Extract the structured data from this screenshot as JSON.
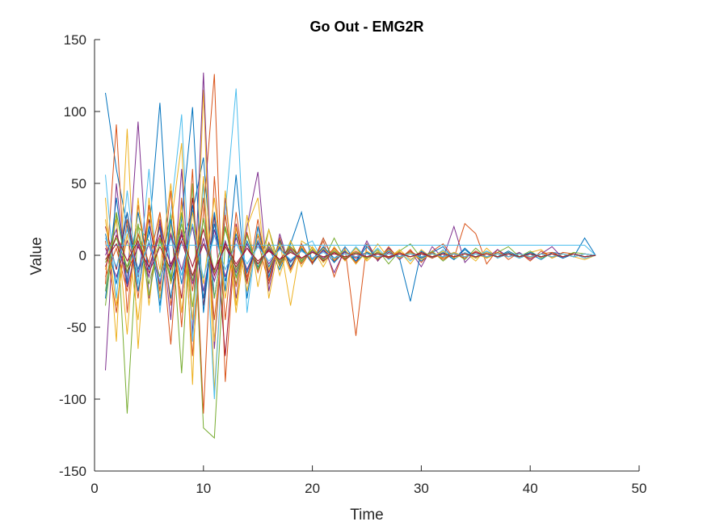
{
  "chart_data": {
    "type": "line",
    "title": "Go Out - EMG2R",
    "xlabel": "Time",
    "ylabel": "Value",
    "xlim": [
      0,
      50
    ],
    "ylim": [
      -150,
      150
    ],
    "xticks": [
      "0",
      "10",
      "20",
      "30",
      "40",
      "50"
    ],
    "yticks": [
      "150",
      "100",
      "50",
      "0",
      "-50",
      "-100",
      "-150"
    ],
    "grid": false,
    "legend": "none",
    "x": [
      1,
      2,
      3,
      4,
      5,
      6,
      7,
      8,
      9,
      10,
      11,
      12,
      13,
      14,
      15,
      16,
      17,
      18,
      19,
      20,
      21,
      22,
      23,
      24,
      25,
      26,
      27,
      28,
      29,
      30,
      31,
      32,
      33,
      34,
      35,
      36,
      37,
      38,
      39,
      40,
      41,
      42,
      43,
      44,
      45,
      46
    ],
    "colors": [
      "#0072BD",
      "#D95319",
      "#EDB120",
      "#7E2F8E",
      "#77AC30",
      "#4DBEEE",
      "#A2142F"
    ],
    "series": [
      {
        "values": [
          113,
          60,
          20,
          -10,
          15,
          106,
          -20,
          10,
          30,
          68,
          -30,
          20,
          -15,
          10,
          -8,
          5,
          -10,
          8,
          30,
          -6,
          12,
          -5,
          6,
          -4,
          8,
          -3,
          5,
          -2,
          3,
          -4,
          2,
          6,
          -3,
          4,
          -2,
          3,
          -1,
          2,
          -2,
          1,
          -3,
          2,
          1,
          -1,
          12,
          0
        ]
      },
      {
        "values": [
          -20,
          91,
          -40,
          35,
          -10,
          20,
          -62,
          40,
          -70,
          30,
          126,
          -88,
          20,
          -15,
          10,
          -20,
          12,
          -10,
          8,
          -6,
          10,
          -15,
          5,
          -56,
          8,
          -4,
          6,
          -3,
          4,
          -5,
          3,
          8,
          -2,
          22,
          15,
          -6,
          4,
          -3,
          2,
          -4,
          3,
          -2,
          2,
          1,
          -2,
          0
        ]
      },
      {
        "values": [
          40,
          -60,
          88,
          -65,
          40,
          -30,
          20,
          78,
          -90,
          115,
          -95,
          30,
          -40,
          20,
          40,
          -30,
          10,
          -35,
          10,
          5,
          -8,
          6,
          -4,
          5,
          -3,
          8,
          -2,
          3,
          -6,
          4,
          -2,
          3,
          -3,
          2,
          -4,
          5,
          -2,
          3,
          -2,
          2,
          4,
          -2,
          1,
          -1,
          -3,
          0
        ]
      },
      {
        "values": [
          -80,
          50,
          -20,
          93,
          -30,
          25,
          -45,
          60,
          -55,
          127,
          -65,
          40,
          -30,
          20,
          58,
          -25,
          15,
          -10,
          8,
          -5,
          6,
          -12,
          4,
          -6,
          10,
          -4,
          5,
          -3,
          3,
          -8,
          6,
          -2,
          20,
          -5,
          3,
          -2,
          4,
          -1,
          2,
          -3,
          1,
          6,
          -2,
          1,
          -1,
          0
        ]
      },
      {
        "values": [
          -35,
          30,
          -110,
          20,
          10,
          -15,
          30,
          -82,
          50,
          -120,
          -127,
          10,
          -20,
          15,
          -10,
          18,
          -8,
          10,
          -5,
          6,
          -4,
          12,
          -3,
          5,
          -2,
          4,
          -6,
          3,
          8,
          -2,
          3,
          -4,
          2,
          -3,
          5,
          -2,
          2,
          6,
          -1,
          3,
          -2,
          1,
          -1,
          2,
          1,
          0
        ]
      },
      {
        "values": [
          56,
          -30,
          45,
          -20,
          60,
          -40,
          30,
          98,
          -60,
          50,
          -100,
          30,
          116,
          -40,
          20,
          -15,
          12,
          -8,
          6,
          10,
          -5,
          4,
          -3,
          6,
          -2,
          5,
          -3,
          2,
          -4,
          3,
          -2,
          4,
          -3,
          2,
          -1,
          3,
          -2,
          1,
          -2,
          2,
          -1,
          1,
          -1,
          1,
          -2,
          0
        ]
      },
      {
        "values": [
          20,
          -10,
          30,
          -15,
          25,
          -20,
          15,
          -30,
          40,
          -35,
          28,
          -70,
          22,
          -18,
          14,
          -12,
          10,
          -8,
          6,
          -5,
          4,
          -3,
          3,
          -2,
          2,
          -3,
          2,
          -1,
          2,
          -1,
          1,
          -2,
          1,
          -1,
          2,
          -1,
          1,
          -1,
          1,
          -1,
          1,
          -1,
          1,
          -1,
          1,
          0
        ]
      },
      {
        "values": [
          -30,
          40,
          -20,
          30,
          -10,
          20,
          -30,
          25,
          103,
          -40,
          30,
          -25,
          56,
          -30,
          20,
          -15,
          10,
          -8,
          5,
          -6,
          4,
          -5,
          3,
          -4,
          6,
          -3,
          4,
          -2,
          -32,
          3,
          -2,
          2,
          -3,
          5,
          -2,
          2,
          -1,
          3,
          -1,
          2,
          -1,
          1,
          -2,
          1,
          -1,
          0
        ]
      },
      {
        "values": [
          10,
          -40,
          25,
          -30,
          35,
          -25,
          45,
          -50,
          60,
          -110,
          55,
          -45,
          30,
          -20,
          25,
          -18,
          12,
          -10,
          8,
          -6,
          12,
          -4,
          3,
          -5,
          2,
          -3,
          4,
          -2,
          3,
          -2,
          2,
          -3,
          1,
          -2,
          3,
          -1,
          2,
          -1,
          1,
          -2,
          1,
          2,
          -1,
          1,
          -1,
          0
        ]
      },
      {
        "values": [
          -10,
          25,
          -55,
          40,
          -35,
          30,
          -20,
          35,
          -45,
          55,
          -60,
          45,
          -35,
          28,
          -22,
          18,
          -14,
          10,
          -8,
          6,
          -5,
          4,
          -3,
          5,
          -4,
          3,
          -2,
          4,
          -3,
          2,
          -1,
          3,
          -2,
          1,
          -2,
          2,
          -1,
          1,
          -1,
          1,
          -1,
          1,
          -1,
          1,
          -1,
          0
        ]
      },
      {
        "values": [
          5,
          -15,
          10,
          -12,
          8,
          -20,
          15,
          -10,
          20,
          -25,
          18,
          -15,
          12,
          -10,
          8,
          -6,
          5,
          -4,
          3,
          -2,
          3,
          -2,
          2,
          -1,
          2,
          -1,
          1,
          -1,
          1,
          -1,
          1,
          -1,
          1,
          -1,
          1,
          -1,
          1,
          -1,
          1,
          -1,
          1,
          -1,
          1,
          -1,
          1,
          0
        ]
      },
      {
        "values": [
          -5,
          12,
          -8,
          15,
          -20,
          10,
          -15,
          22,
          -18,
          25,
          -12,
          18,
          -10,
          8,
          -6,
          5,
          -4,
          3,
          -3,
          2,
          -2,
          2,
          -1,
          1,
          -1,
          1,
          -1,
          1,
          -1,
          1,
          -1,
          1,
          -1,
          1,
          -1,
          1,
          -1,
          1,
          -1,
          1,
          -1,
          1,
          -1,
          1,
          -1,
          0
        ]
      },
      {
        "values": [
          7,
          7,
          7,
          7,
          7,
          7,
          7,
          7,
          7,
          7,
          7,
          7,
          7,
          7,
          7,
          7,
          7,
          7,
          7,
          7,
          7,
          7,
          7,
          7,
          7,
          7,
          7,
          7,
          7,
          7,
          7,
          7,
          7,
          7,
          7,
          7,
          7,
          7,
          7,
          7,
          7,
          7,
          7,
          7,
          7,
          0
        ]
      },
      {
        "values": [
          -3,
          8,
          -12,
          6,
          -8,
          14,
          -6,
          10,
          -14,
          8,
          -10,
          6,
          -8,
          5,
          -6,
          4,
          -3,
          6,
          -2,
          3,
          -4,
          2,
          -3,
          2,
          -2,
          1,
          -2,
          1,
          -1,
          2,
          -1,
          1,
          -1,
          1,
          -1,
          1,
          -1,
          1,
          -1,
          1,
          -1,
          1,
          -1,
          1,
          -1,
          0
        ]
      },
      {
        "values": [
          15,
          -20,
          30,
          -25,
          20,
          -35,
          25,
          -20,
          35,
          -30,
          22,
          -18,
          15,
          -12,
          10,
          -8,
          6,
          -5,
          4,
          -3,
          6,
          -2,
          3,
          -4,
          2,
          -2,
          3,
          -1,
          2,
          -2,
          1,
          -1,
          2,
          -1,
          1,
          -1,
          1,
          -1,
          1,
          -1,
          1,
          -1,
          1,
          -1,
          1,
          0
        ]
      },
      {
        "values": [
          -15,
          5,
          -25,
          15,
          -5,
          30,
          -35,
          18,
          -25,
          40,
          -45,
          28,
          -22,
          16,
          -12,
          9,
          -7,
          5,
          -6,
          4,
          -3,
          5,
          -2,
          3,
          -2,
          2,
          -1,
          2,
          -1,
          1,
          -2,
          1,
          -1,
          1,
          -1,
          1,
          -1,
          1,
          -1,
          1,
          -1,
          1,
          -1,
          1,
          -1,
          0
        ]
      },
      {
        "values": [
          25,
          -35,
          15,
          -45,
          30,
          -10,
          50,
          -40,
          30,
          -20,
          40,
          -30,
          20,
          -25,
          15,
          -10,
          8,
          -12,
          6,
          -4,
          5,
          -3,
          4,
          -6,
          3,
          -2,
          4,
          -2,
          2,
          -3,
          1,
          -2,
          2,
          -1,
          1,
          -2,
          1,
          -1,
          1,
          -1,
          1,
          -1,
          1,
          -1,
          1,
          0
        ]
      },
      {
        "values": [
          0,
          18,
          -22,
          8,
          -15,
          22,
          -8,
          16,
          -20,
          12,
          -18,
          10,
          -12,
          8,
          -10,
          6,
          -5,
          4,
          -4,
          3,
          -2,
          3,
          -2,
          2,
          -1,
          2,
          -1,
          1,
          -1,
          1,
          -1,
          1,
          -1,
          1,
          -1,
          1,
          -1,
          1,
          -1,
          1,
          -1,
          1,
          -1,
          1,
          -1,
          0
        ]
      },
      {
        "values": [
          -25,
          30,
          -12,
          22,
          -28,
          12,
          -18,
          30,
          -36,
          26,
          -30,
          20,
          -16,
          14,
          -10,
          8,
          -6,
          6,
          -4,
          4,
          -3,
          3,
          -2,
          2,
          -2,
          2,
          -1,
          1,
          -1,
          1,
          -1,
          1,
          -1,
          1,
          -1,
          1,
          -1,
          1,
          -1,
          1,
          -1,
          1,
          -1,
          1,
          -1,
          0
        ]
      },
      {
        "values": [
          12,
          -8,
          18,
          -14,
          10,
          -18,
          12,
          -14,
          22,
          -16,
          14,
          -10,
          8,
          -6,
          6,
          -4,
          4,
          -3,
          3,
          -2,
          2,
          -2,
          1,
          -1,
          1,
          -1,
          1,
          -1,
          1,
          -1,
          1,
          -1,
          1,
          -1,
          1,
          -1,
          1,
          -1,
          1,
          -1,
          1,
          -1,
          1,
          -1,
          1,
          0
        ]
      },
      {
        "values": [
          -8,
          14,
          -4,
          10,
          -12,
          6,
          -10,
          14,
          -8,
          18,
          -14,
          8,
          -6,
          5,
          -4,
          3,
          -3,
          2,
          -2,
          2,
          -1,
          1,
          -1,
          1,
          -1,
          1,
          -1,
          1,
          -1,
          1,
          -1,
          1,
          -1,
          1,
          -1,
          1,
          -1,
          1,
          -1,
          1,
          -1,
          1,
          -1,
          1,
          -1,
          0
        ]
      }
    ]
  }
}
